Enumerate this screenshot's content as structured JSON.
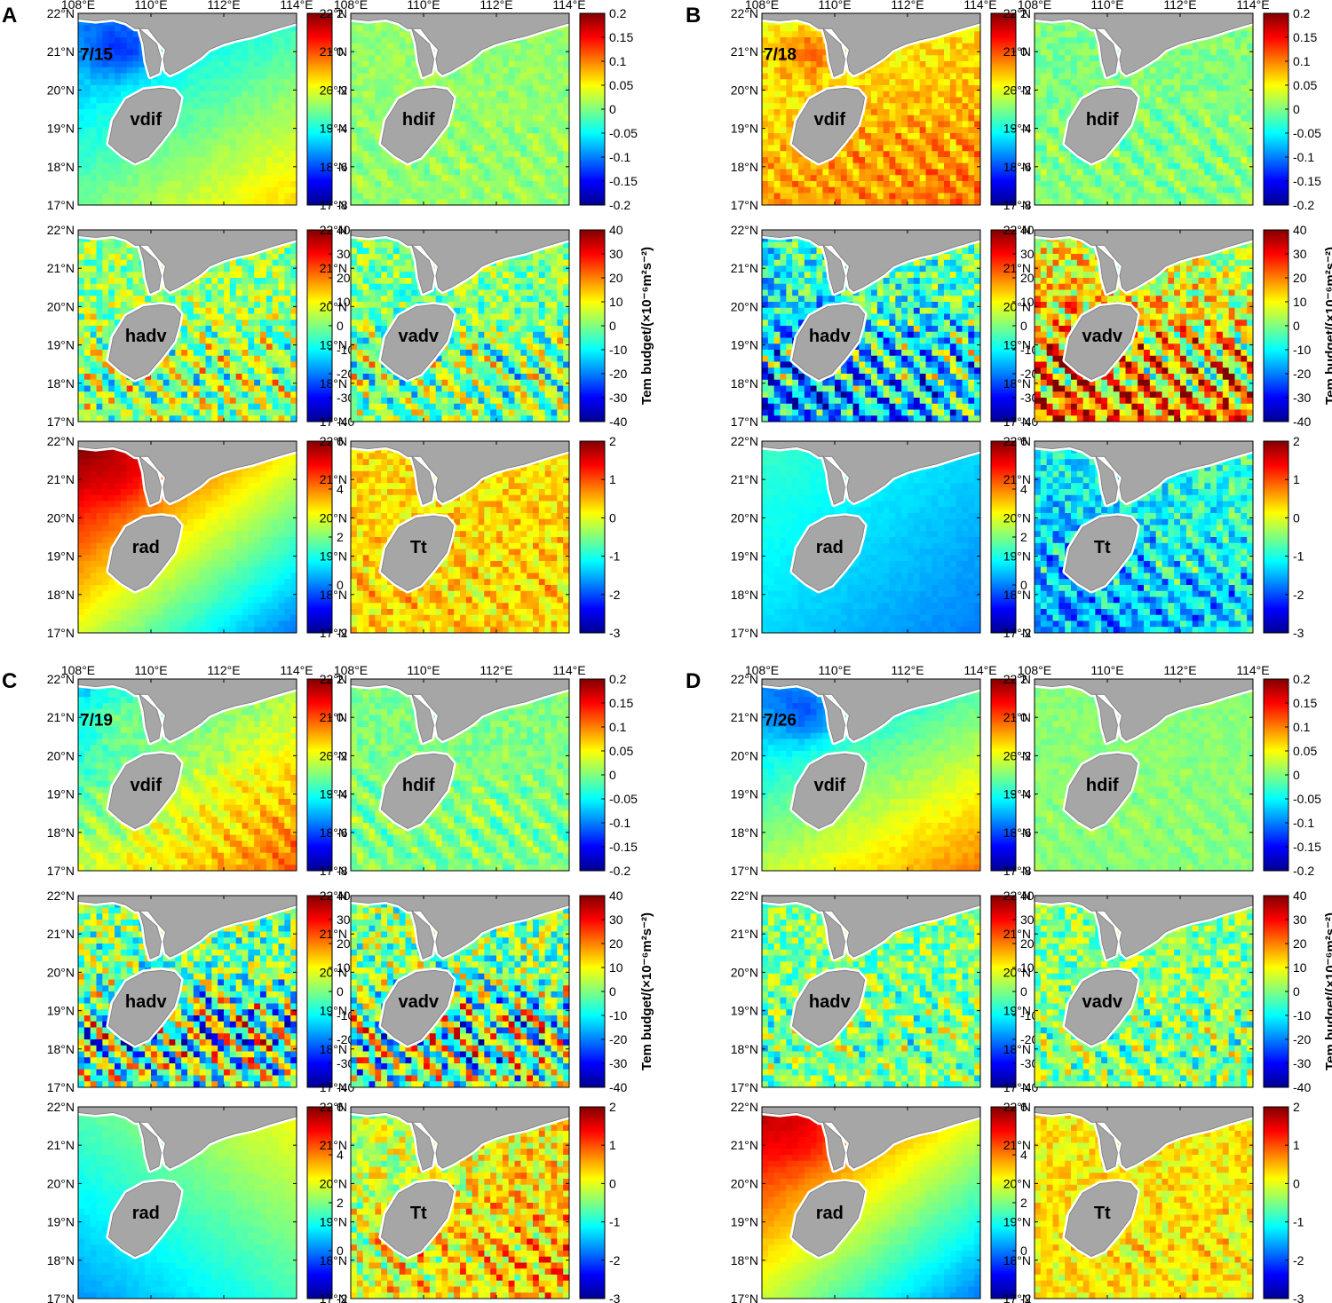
{
  "figure": {
    "colormap": [
      "#00008f",
      "#0000ff",
      "#0080ff",
      "#00ffff",
      "#80ff80",
      "#ffff00",
      "#ff8000",
      "#ff0000",
      "#800000"
    ],
    "land_color": "#a6a6a6",
    "coast_fringe_color": "#ffffff",
    "longitude_ticks": [
      "108°E",
      "110°E",
      "112°E",
      "114°E"
    ],
    "latitude_ticks": [
      "22°N",
      "21°N",
      "20°N",
      "19°N",
      "18°N",
      "17°N"
    ],
    "colorbar_title": "Tem budget/(×10⁻⁶m²s⁻²)",
    "colorbars": {
      "vdif": [
        "2",
        "0",
        "-2",
        "-4",
        "-6",
        "-8"
      ],
      "hdif": [
        "0.2",
        "0.15",
        "0.1",
        "0.05",
        "0",
        "-0.05",
        "-0.1",
        "-0.15",
        "-0.2"
      ],
      "adv": [
        "40",
        "30",
        "20",
        "10",
        "0",
        "-10",
        "-20",
        "-30",
        "-40"
      ],
      "rad": [
        "6",
        "4",
        "2",
        "0",
        "-2"
      ],
      "tt": [
        "2",
        "1",
        "0",
        "-1",
        "-2",
        "-3"
      ]
    }
  },
  "panels": [
    {
      "letter": "A",
      "date": "7/15",
      "maps": [
        {
          "label": "vdif",
          "field": {
            "base": 0.45,
            "gradient": 0.18,
            "gx": 0.5,
            "gy": 0.7,
            "warm": 0.6,
            "noise": 0.02,
            "bands": 0.0
          }
        },
        {
          "label": "hdif",
          "field": {
            "base": 0.52,
            "gradient": 0.0,
            "gx": 0,
            "gy": 0,
            "warm": 0.0,
            "noise": 0.04,
            "bands": 0.04
          }
        },
        {
          "label": "hadv",
          "field": {
            "base": 0.52,
            "gradient": 0.0,
            "gx": 0,
            "gy": 0,
            "warm": 0.0,
            "noise": 0.14,
            "bands": 0.18
          }
        },
        {
          "label": "vadv",
          "field": {
            "base": 0.5,
            "gradient": 0.0,
            "gx": 0,
            "gy": 0,
            "warm": 0.0,
            "noise": 0.14,
            "bands": 0.18
          }
        },
        {
          "label": "rad",
          "field": {
            "base": 0.62,
            "gradient": 0.3,
            "gx": -0.6,
            "gy": -0.7,
            "warm": 0.2,
            "noise": 0.01,
            "bands": 0.0
          }
        },
        {
          "label": "Tt",
          "field": {
            "base": 0.66,
            "gradient": 0.0,
            "gx": 0,
            "gy": 0,
            "warm": 0.0,
            "noise": 0.08,
            "bands": 0.06
          }
        }
      ]
    },
    {
      "letter": "B",
      "date": "7/18",
      "maps": [
        {
          "label": "vdif",
          "field": {
            "base": 0.68,
            "gradient": 0.1,
            "gx": 0.2,
            "gy": 0.6,
            "warm": 0.5,
            "noise": 0.06,
            "bands": 0.06
          }
        },
        {
          "label": "hdif",
          "field": {
            "base": 0.5,
            "gradient": 0.0,
            "gx": 0,
            "gy": 0,
            "warm": 0.0,
            "noise": 0.05,
            "bands": 0.06
          }
        },
        {
          "label": "hadv",
          "field": {
            "base": 0.38,
            "gradient": 0.12,
            "gx": 0.3,
            "gy": -0.7,
            "warm": 0.0,
            "noise": 0.18,
            "bands": 0.25
          }
        },
        {
          "label": "vadv",
          "field": {
            "base": 0.66,
            "gradient": 0.12,
            "gx": -0.3,
            "gy": 0.7,
            "warm": 0.0,
            "noise": 0.18,
            "bands": 0.25
          }
        },
        {
          "label": "rad",
          "field": {
            "base": 0.34,
            "gradient": 0.08,
            "gx": -0.6,
            "gy": -0.6,
            "warm": 0.0,
            "noise": 0.01,
            "bands": 0.0
          }
        },
        {
          "label": "Tt",
          "field": {
            "base": 0.36,
            "gradient": 0.1,
            "gx": 0.4,
            "gy": -0.6,
            "warm": 0.0,
            "noise": 0.12,
            "bands": 0.12
          }
        }
      ]
    },
    {
      "letter": "C",
      "date": "7/19",
      "maps": [
        {
          "label": "vdif",
          "field": {
            "base": 0.55,
            "gradient": 0.18,
            "gx": 0.6,
            "gy": 0.7,
            "warm": 0.3,
            "noise": 0.04,
            "bands": 0.06
          }
        },
        {
          "label": "hdif",
          "field": {
            "base": 0.5,
            "gradient": 0.0,
            "gx": 0,
            "gy": 0,
            "warm": 0.0,
            "noise": 0.05,
            "bands": 0.08
          }
        },
        {
          "label": "hadv",
          "field": {
            "base": 0.48,
            "gradient": 0.0,
            "gx": 0,
            "gy": 0,
            "warm": 0.0,
            "noise": 0.2,
            "bands": 0.32
          }
        },
        {
          "label": "vadv",
          "field": {
            "base": 0.5,
            "gradient": 0.0,
            "gx": 0,
            "gy": 0,
            "warm": 0.0,
            "noise": 0.2,
            "bands": 0.32
          }
        },
        {
          "label": "rad",
          "field": {
            "base": 0.45,
            "gradient": 0.14,
            "gx": 0.6,
            "gy": -0.7,
            "warm": 0.0,
            "noise": 0.01,
            "bands": 0.0
          }
        },
        {
          "label": "Tt",
          "field": {
            "base": 0.62,
            "gradient": 0.1,
            "gx": 0.5,
            "gy": 0.3,
            "warm": 0.0,
            "noise": 0.14,
            "bands": 0.12
          }
        }
      ]
    },
    {
      "letter": "D",
      "date": "7/26",
      "maps": [
        {
          "label": "vdif",
          "field": {
            "base": 0.5,
            "gradient": 0.2,
            "gx": 0.5,
            "gy": 0.8,
            "warm": 0.5,
            "noise": 0.02,
            "bands": 0.0
          }
        },
        {
          "label": "hdif",
          "field": {
            "base": 0.51,
            "gradient": 0.0,
            "gx": 0,
            "gy": 0,
            "warm": 0.0,
            "noise": 0.03,
            "bands": 0.03
          }
        },
        {
          "label": "hadv",
          "field": {
            "base": 0.5,
            "gradient": 0.0,
            "gx": 0,
            "gy": 0,
            "warm": 0.0,
            "noise": 0.14,
            "bands": 0.1
          }
        },
        {
          "label": "vadv",
          "field": {
            "base": 0.5,
            "gradient": 0.0,
            "gx": 0,
            "gy": 0,
            "warm": 0.0,
            "noise": 0.14,
            "bands": 0.1
          }
        },
        {
          "label": "rad",
          "field": {
            "base": 0.6,
            "gradient": 0.28,
            "gx": -0.6,
            "gy": -0.7,
            "warm": 0.2,
            "noise": 0.01,
            "bands": 0.0
          }
        },
        {
          "label": "Tt",
          "field": {
            "base": 0.64,
            "gradient": 0.0,
            "gx": 0,
            "gy": 0,
            "warm": 0.0,
            "noise": 0.08,
            "bands": 0.05
          }
        }
      ]
    }
  ]
}
